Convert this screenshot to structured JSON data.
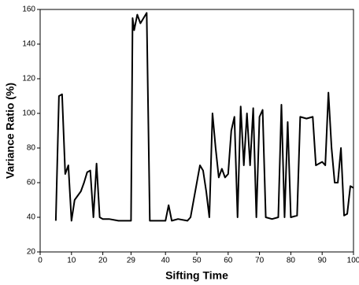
{
  "chart_data": {
    "type": "line",
    "x_label": "Sifting Time",
    "y_label": "Variance Ratio (%)",
    "x": [
      5,
      6,
      7,
      8,
      9,
      10,
      11,
      13,
      14,
      15,
      16,
      17,
      18,
      19,
      20,
      22,
      25,
      29,
      29.5,
      30,
      31,
      32,
      34,
      35,
      40,
      41,
      42,
      44,
      47,
      48,
      50,
      51,
      52,
      53,
      54,
      55,
      56,
      57,
      58,
      59,
      60,
      61,
      62,
      63,
      64,
      65,
      66,
      67,
      68,
      69,
      70,
      71,
      72,
      74,
      76,
      77,
      78,
      79,
      80,
      82,
      83,
      85,
      87,
      88,
      90,
      91,
      92,
      93,
      94,
      95,
      96,
      97,
      98,
      99,
      100
    ],
    "series": [
      {
        "name": "Variance Ratio",
        "color": "#000000",
        "values": [
          38,
          110,
          111,
          65,
          70,
          38,
          50,
          55,
          60,
          66,
          67,
          40,
          71,
          40,
          39,
          39,
          38,
          38,
          155,
          148,
          157,
          152,
          158,
          38,
          38,
          47,
          38,
          39,
          38,
          40,
          60,
          70,
          67,
          55,
          40,
          100,
          80,
          63,
          68,
          63,
          65,
          90,
          98,
          40,
          104,
          70,
          100,
          70,
          103,
          40,
          98,
          102,
          40,
          39,
          40,
          105,
          40,
          95,
          40,
          41,
          98,
          97,
          98,
          70,
          72,
          70,
          112,
          80,
          60,
          60,
          80,
          41,
          42,
          58,
          57
        ]
      }
    ],
    "xlim": [
      0,
      100
    ],
    "xticks": [
      0,
      10,
      20,
      29,
      40,
      50,
      60,
      70,
      80,
      90,
      100
    ],
    "ylim": [
      20,
      160
    ],
    "yticks": [
      20,
      40,
      60,
      80,
      100,
      120,
      140,
      160
    ]
  }
}
